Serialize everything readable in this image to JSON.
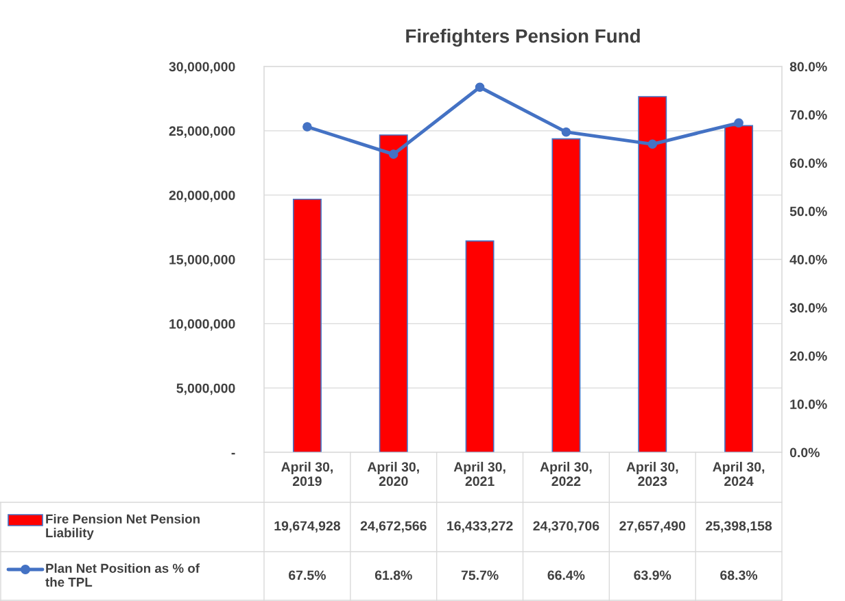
{
  "chart_data": {
    "type": "bar",
    "title": "Firefighters Pension Fund",
    "categories": [
      "April 30, 2019",
      "April 30, 2020",
      "April 30, 2021",
      "April 30, 2022",
      "April 30, 2023",
      "April 30, 2024"
    ],
    "series": [
      {
        "name": "Fire Pension Net Pension Liability",
        "color": "#ff0000",
        "values": [
          19674928,
          24672566,
          16433272,
          24370706,
          27657490,
          25398158
        ],
        "value_labels": [
          "19,674,928",
          "24,672,566",
          "16,433,272",
          "24,370,706",
          "27,657,490",
          "25,398,158"
        ]
      },
      {
        "name": "Plan Net Position as % of the TPL",
        "type": "line",
        "axis": "y2",
        "color": "#4472c4",
        "marker": "circle",
        "values": [
          67.5,
          61.8,
          75.7,
          66.4,
          63.9,
          68.3
        ],
        "value_labels": [
          "67.5%",
          "61.8%",
          "75.7%",
          "66.4%",
          "63.9%",
          "68.3%"
        ]
      }
    ],
    "ylim": [
      0,
      30000000
    ],
    "yticks": [
      {
        "value": 0,
        "label": "-"
      },
      {
        "value": 5000000,
        "label": "5,000,000"
      },
      {
        "value": 10000000,
        "label": "10,000,000"
      },
      {
        "value": 15000000,
        "label": "15,000,000"
      },
      {
        "value": 20000000,
        "label": "20,000,000"
      },
      {
        "value": 25000000,
        "label": "25,000,000"
      },
      {
        "value": 30000000,
        "label": "30,000,000"
      }
    ],
    "y2lim": [
      0,
      80
    ],
    "y2ticks": [
      {
        "value": 0,
        "label": "0.0%"
      },
      {
        "value": 10,
        "label": "10.0%"
      },
      {
        "value": 20,
        "label": "20.0%"
      },
      {
        "value": 30,
        "label": "30.0%"
      },
      {
        "value": 40,
        "label": "40.0%"
      },
      {
        "value": 50,
        "label": "50.0%"
      },
      {
        "value": 60,
        "label": "60.0%"
      },
      {
        "value": 70,
        "label": "70.0%"
      },
      {
        "value": 80,
        "label": "80.0%"
      }
    ],
    "grid": "y",
    "legend": "bottom"
  }
}
